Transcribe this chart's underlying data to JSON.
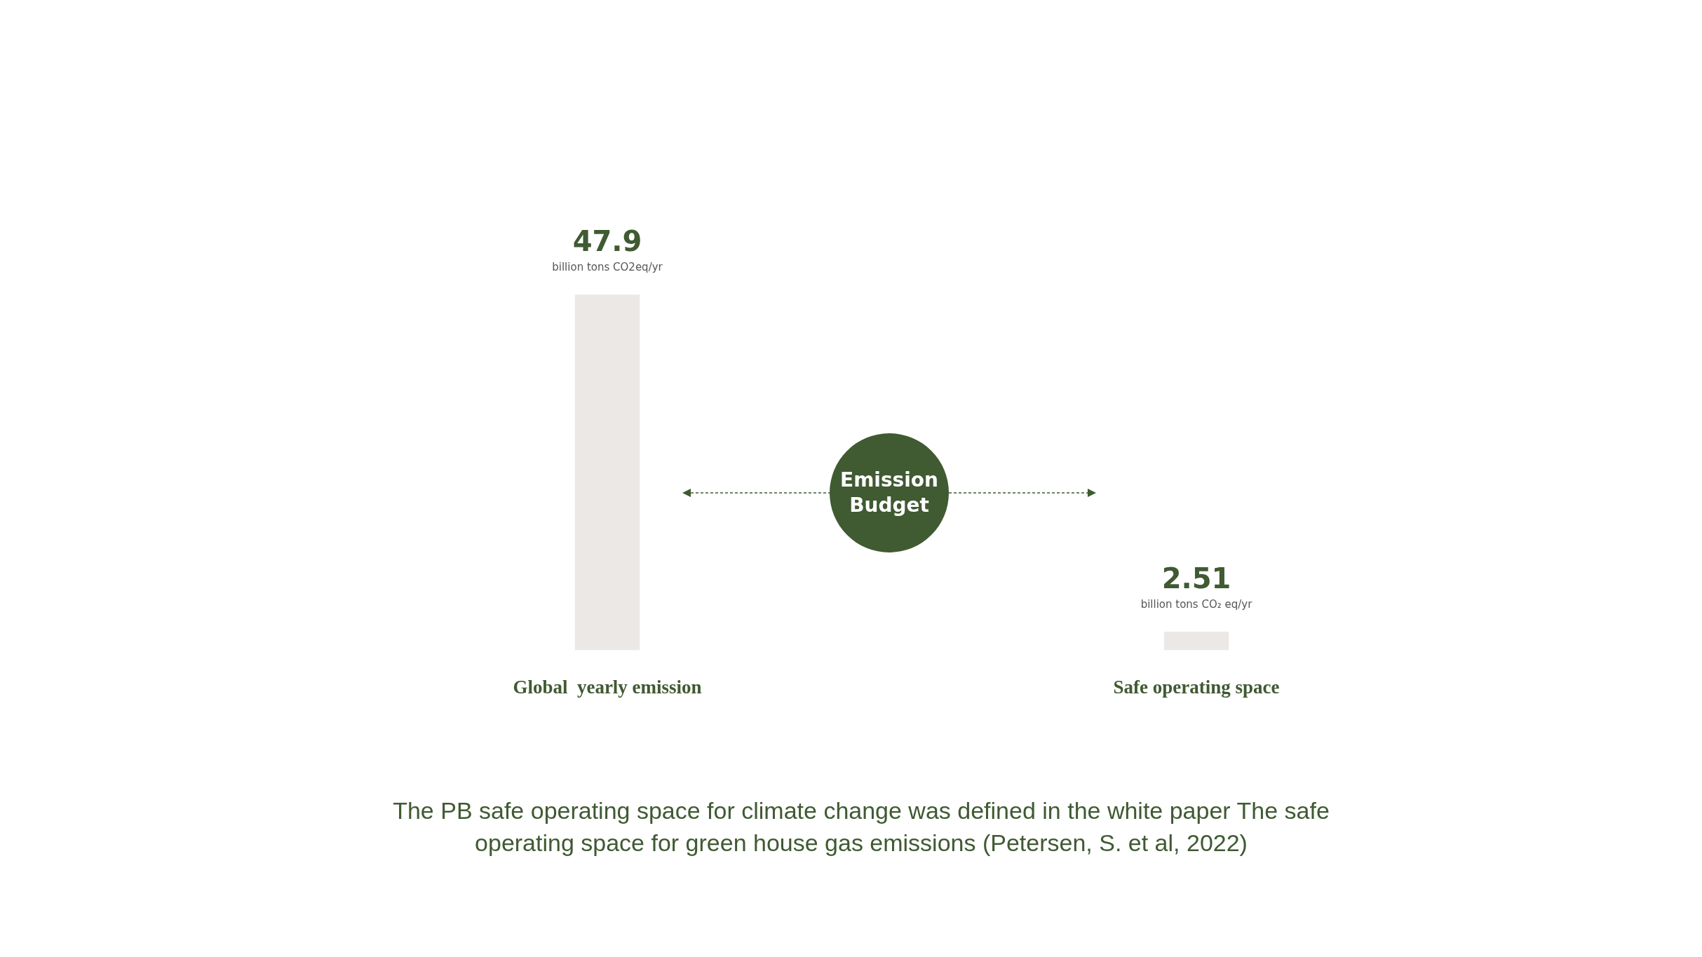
{
  "chart_data": {
    "type": "bar",
    "categories": [
      "Global  yearly emission",
      "Safe operating space"
    ],
    "values": [
      47.9,
      2.51
    ],
    "color": "#ebe8e5",
    "data_labels": true,
    "annotations": [
      {
        "text": "billion tons CO2eq/yr",
        "x": "Global  yearly emission",
        "y": 47.9
      },
      {
        "text": "billion tons CO₂ eq/yr",
        "x": "Safe operating space",
        "y": 2.51
      },
      "Emission Budget",
      "The PB safe operating space for climate change was defined in the white paper The safe operating space for green house gas emissions (Petersen, S. et al, 2022)"
    ]
  }
}
